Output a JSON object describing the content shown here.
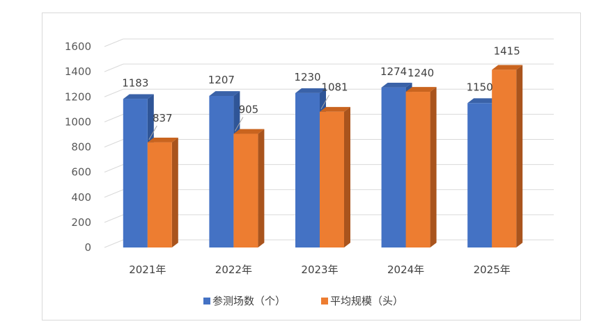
{
  "chart_data": {
    "type": "bar",
    "categories": [
      "2021年",
      "2022年",
      "2023年",
      "2024年",
      "2025年"
    ],
    "series": [
      {
        "name": "参测场数（个）",
        "values": [
          1183,
          1207,
          1230,
          1274,
          1150
        ]
      },
      {
        "name": "平均规模（头）",
        "values": [
          837,
          905,
          1081,
          1240,
          1415
        ]
      }
    ],
    "ylim": [
      0,
      1600
    ],
    "yticks": [
      "0",
      "200",
      "400",
      "600",
      "800",
      "1000",
      "1200",
      "1400",
      "1600"
    ],
    "grid": true,
    "legend_position": "bottom",
    "colors": {
      "series": [
        "#4472C4",
        "#ED7D31"
      ],
      "series_side": [
        "#2F5597",
        "#A9541D"
      ],
      "series_top": [
        "#3A62A8",
        "#C9641F"
      ]
    }
  }
}
